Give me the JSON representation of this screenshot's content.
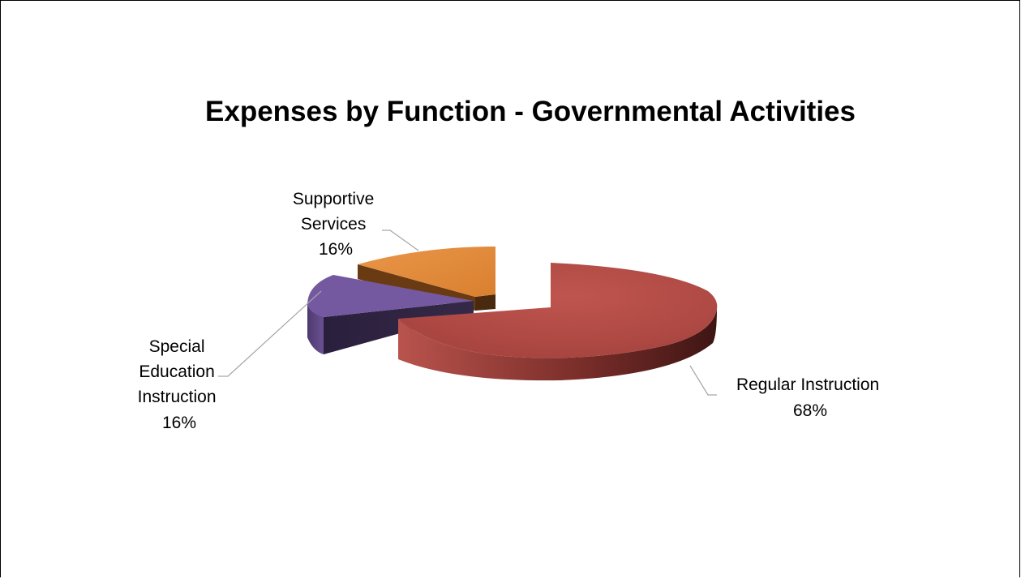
{
  "chart_data": {
    "type": "pie",
    "variant": "3d-exploded",
    "title": "Expenses by Function - Governmental Activities",
    "legend": "none",
    "slices": [
      {
        "name": "Regular Instruction",
        "value": 68,
        "label_lines": [
          "Regular Instruction",
          "68%"
        ],
        "color": "#b04a45"
      },
      {
        "name": "Special Education Instruction",
        "value": 16,
        "label_lines": [
          "Special",
          "Education",
          "Instruction",
          "16%"
        ],
        "color": "#7559a0"
      },
      {
        "name": "Supportive Services",
        "value": 16,
        "label_lines": [
          "Supportive",
          "Services",
          "16%"
        ],
        "color": "#e18a3c"
      }
    ]
  }
}
